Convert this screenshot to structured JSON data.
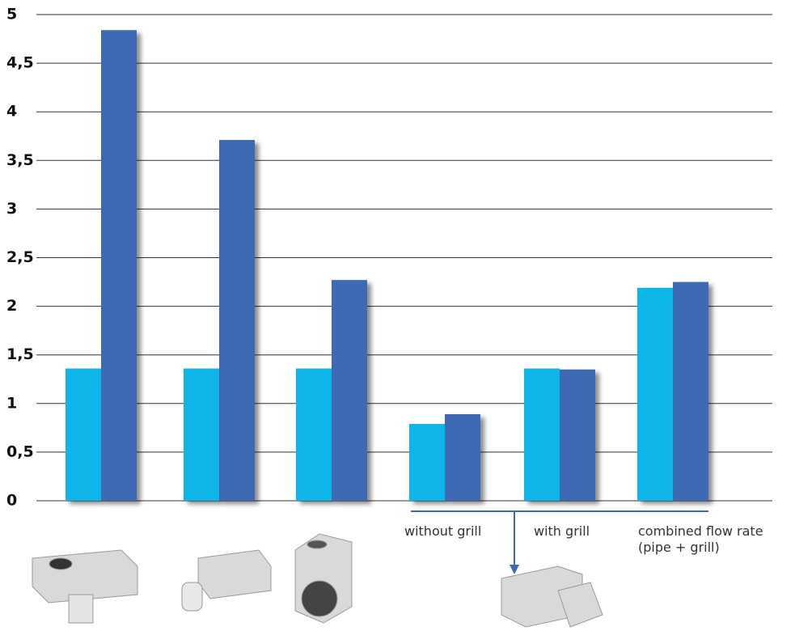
{
  "chart_data": {
    "type": "bar",
    "categories": [
      null,
      null,
      null,
      "without grill",
      "with grill",
      "combined flow rate (pipe + grill)"
    ],
    "series": [
      {
        "color": "#0bb5e8",
        "values": [
          1.36,
          1.36,
          1.36,
          0.79,
          1.36,
          2.19
        ]
      },
      {
        "color": "#3d6bb3",
        "values": [
          4.84,
          3.71,
          2.27,
          0.89,
          1.35,
          2.25
        ]
      }
    ],
    "ylim": [
      0,
      5
    ],
    "yticks": [
      0,
      {
        "value": 0.5,
        "label": "0,5"
      },
      1,
      {
        "value": 1.5,
        "label": "1,5"
      },
      2,
      {
        "value": 2.5,
        "label": "2,5"
      },
      3,
      {
        "value": 3.5,
        "label": "3,5"
      },
      4,
      {
        "value": 4.5,
        "label": "4,5"
      },
      5
    ],
    "grid": true
  }
}
